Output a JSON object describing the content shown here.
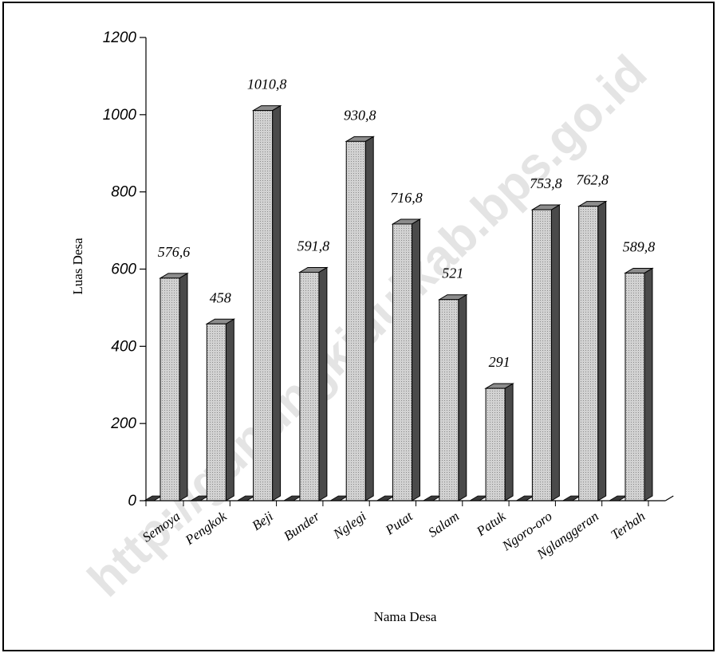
{
  "chart_data": {
    "type": "bar",
    "categories": [
      "Semoya",
      "Pengkok",
      "Beji",
      "Bunder",
      "Nglegi",
      "Putat",
      "Salam",
      "Patuk",
      "Ngoro-oro",
      "Nglanggeran",
      "Terbah"
    ],
    "values": [
      576.6,
      458,
      1010.8,
      591.8,
      930.8,
      716.8,
      521,
      291,
      753.8,
      762.8,
      589.8
    ],
    "value_labels": [
      "576,6",
      "458",
      "1010,8",
      "591,8",
      "930,8",
      "716,8",
      "521",
      "291",
      "753,8",
      "762,8",
      "589,8"
    ],
    "title": "",
    "xlabel": "Nama Desa",
    "ylabel": "Luas Desa",
    "ylim": [
      0,
      1200
    ],
    "yticks": [
      0,
      200,
      400,
      600,
      800,
      1000,
      1200
    ],
    "grid": false,
    "legend": "none",
    "style": "3d-bar",
    "colors": {
      "bar_front": "#c4c4c4",
      "bar_side": "#4a4a4a",
      "bar_top": "#8c8c8c",
      "axis": "#000000"
    }
  },
  "watermark": "http://gunungkidulkab.bps.go.id"
}
